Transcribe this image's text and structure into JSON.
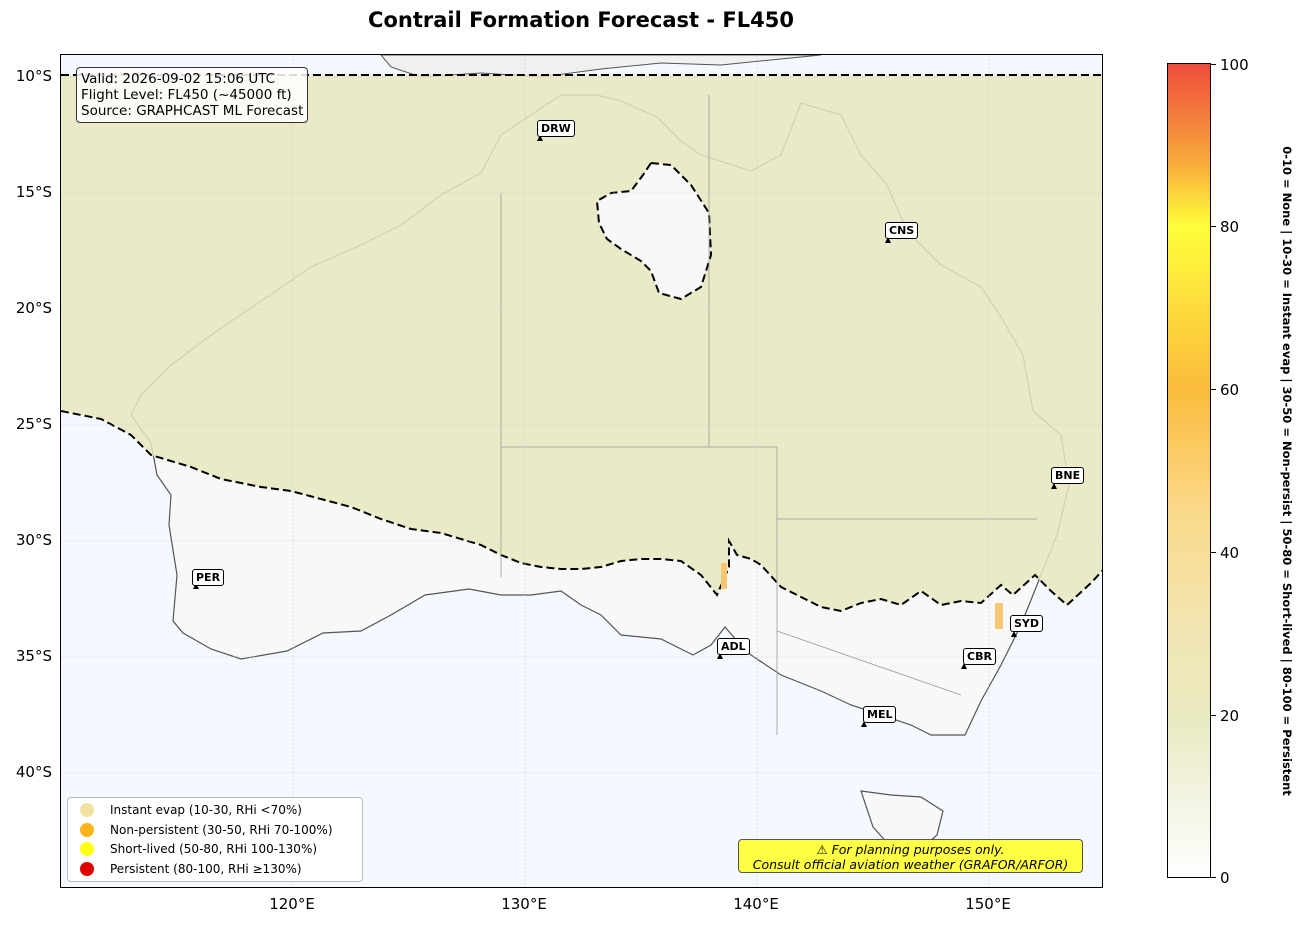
{
  "title": "Contrail Formation Forecast - FL450",
  "info": {
    "valid": "Valid: 2026-09-02 15:06 UTC",
    "flight_level": "Flight Level: FL450 (~45000 ft)",
    "source": "Source: GRAPHCAST ML Forecast"
  },
  "axes": {
    "lat_ticks": [
      "10°S",
      "15°S",
      "20°S",
      "25°S",
      "30°S",
      "35°S",
      "40°S"
    ],
    "lon_ticks": [
      "120°E",
      "130°E",
      "140°E",
      "150°E"
    ]
  },
  "cities": [
    {
      "code": "DRW"
    },
    {
      "code": "CNS"
    },
    {
      "code": "BNE"
    },
    {
      "code": "PER"
    },
    {
      "code": "ADL"
    },
    {
      "code": "SYD"
    },
    {
      "code": "CBR"
    },
    {
      "code": "MEL"
    }
  ],
  "legend": [
    {
      "label": "Instant evap (10-30, RHi <70%)",
      "color": "#f0e2a0"
    },
    {
      "label": "Non-persistent (30-50, RHi 70-100%)",
      "color": "#fdb31a"
    },
    {
      "label": "Short-lived (50-80, RHi 100-130%)",
      "color": "#ffff10"
    },
    {
      "label": "Persistent (80-100, RHi ≥130%)",
      "color": "#e00000"
    }
  ],
  "warning": {
    "line1": "⚠ For planning purposes only.",
    "line2": "Consult official aviation weather (GRAFOR/ARFOR)"
  },
  "colorbar": {
    "ticks": [
      "0",
      "20",
      "40",
      "60",
      "80",
      "100"
    ],
    "label": "0-10 = None  |  10-30 = Instant evap  |  30-50 = Non-persist  |  50-80 = Short-lived  |  80-100 = Persistent"
  },
  "colors": {
    "ocean": "#f4f9ff",
    "forecast_fill": "#e9e9c2",
    "land_clear": "#f8f8f8",
    "coast": "#555555"
  }
}
